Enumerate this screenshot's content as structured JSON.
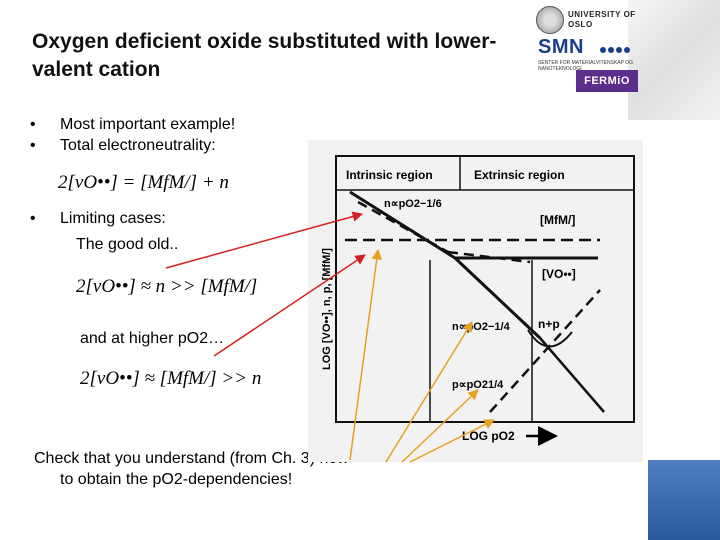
{
  "slide": {
    "title": "Oxygen deficient oxide substituted with lower-valent cation",
    "bullets": [
      {
        "symbol": "•",
        "text": "Most important example!"
      },
      {
        "symbol": "•",
        "text": "Total electroneutrality:"
      },
      {
        "symbol": "•",
        "text": "Limiting cases:"
      }
    ],
    "good_old": "The good old..",
    "higher_po2": "and at higher pO2…",
    "note_line1": "Check that you understand (from Ch. 3) how",
    "note_line2": "to obtain the pO2-dependencies!"
  },
  "equations": {
    "eq1": "2[vO••] = [MfM/] + n",
    "eq2": "2[vO••] ≈ n >> [MfM/]",
    "eq3": "2[vO••] ≈ [MfM/] >> n"
  },
  "logos": {
    "university": "UNIVERSITY OF OSLO",
    "smn": "SMN",
    "smn_sub": "SENTER FOR MATERIALVITENSKAP OG NANOTEKNOLOGI",
    "fermio": "FERMiO"
  },
  "diagram": {
    "region_intrinsic": "Intrinsic region",
    "region_extrinsic": "Extrinsic region",
    "label_n_top": "n∝pO2−1/6",
    "label_mf": "[MfM/]",
    "label_vo": "[VO••]",
    "label_n_mid": "n∝pO2−1/4",
    "label_np": "n+p",
    "label_p": "p∝pO21/4",
    "y_axis": "LOG [VO••], n, p, [MfM/]",
    "x_axis": "LOG pO2"
  },
  "colors": {
    "arrow_red": "#d42020",
    "arrow_orange": "#e8a020"
  }
}
